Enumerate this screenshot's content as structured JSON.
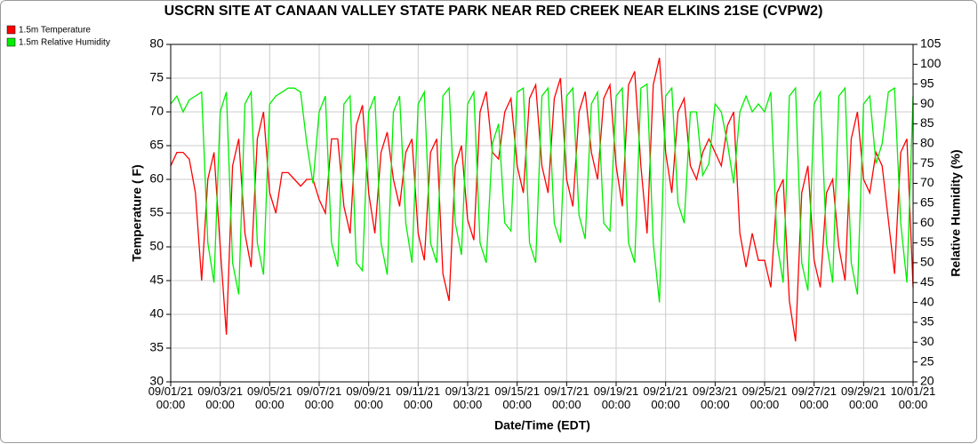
{
  "chart_data": {
    "type": "line",
    "title": "USCRN SITE AT CANAAN VALLEY STATE PARK NEAR RED CREEK NEAR ELKINS 21SE (CVPW2)",
    "xlabel": "Date/Time (EDT)",
    "ylabel": "Temperature ( F)",
    "y2label": "Relative Humidity (%)",
    "x": [
      "09/01/21 00:00",
      "09/01/21 06:00",
      "09/01/21 12:00",
      "09/01/21 18:00",
      "09/02/21 00:00",
      "09/02/21 06:00",
      "09/02/21 12:00",
      "09/02/21 18:00",
      "09/03/21 00:00",
      "09/03/21 06:00",
      "09/03/21 12:00",
      "09/03/21 18:00",
      "09/04/21 00:00",
      "09/04/21 06:00",
      "09/04/21 12:00",
      "09/04/21 18:00",
      "09/05/21 00:00",
      "09/05/21 06:00",
      "09/05/21 12:00",
      "09/05/21 18:00",
      "09/06/21 00:00",
      "09/06/21 06:00",
      "09/06/21 12:00",
      "09/06/21 18:00",
      "09/07/21 00:00",
      "09/07/21 06:00",
      "09/07/21 12:00",
      "09/07/21 18:00",
      "09/08/21 00:00",
      "09/08/21 06:00",
      "09/08/21 12:00",
      "09/08/21 18:00",
      "09/09/21 00:00",
      "09/09/21 06:00",
      "09/09/21 12:00",
      "09/09/21 18:00",
      "09/10/21 00:00",
      "09/10/21 06:00",
      "09/10/21 12:00",
      "09/10/21 18:00",
      "09/11/21 00:00",
      "09/11/21 06:00",
      "09/11/21 12:00",
      "09/11/21 18:00",
      "09/12/21 00:00",
      "09/12/21 06:00",
      "09/12/21 12:00",
      "09/12/21 18:00",
      "09/13/21 00:00",
      "09/13/21 06:00",
      "09/13/21 12:00",
      "09/13/21 18:00",
      "09/14/21 00:00",
      "09/14/21 06:00",
      "09/14/21 12:00",
      "09/14/21 18:00",
      "09/15/21 00:00",
      "09/15/21 06:00",
      "09/15/21 12:00",
      "09/15/21 18:00",
      "09/16/21 00:00",
      "09/16/21 06:00",
      "09/16/21 12:00",
      "09/16/21 18:00",
      "09/17/21 00:00",
      "09/17/21 06:00",
      "09/17/21 12:00",
      "09/17/21 18:00",
      "09/18/21 00:00",
      "09/18/21 06:00",
      "09/18/21 12:00",
      "09/18/21 18:00",
      "09/19/21 00:00",
      "09/19/21 06:00",
      "09/19/21 12:00",
      "09/19/21 18:00",
      "09/20/21 00:00",
      "09/20/21 06:00",
      "09/20/21 12:00",
      "09/20/21 18:00",
      "09/21/21 00:00",
      "09/21/21 06:00",
      "09/21/21 12:00",
      "09/21/21 18:00",
      "09/22/21 00:00",
      "09/22/21 06:00",
      "09/22/21 12:00",
      "09/22/21 18:00",
      "09/23/21 00:00",
      "09/23/21 06:00",
      "09/23/21 12:00",
      "09/23/21 18:00",
      "09/24/21 00:00",
      "09/24/21 06:00",
      "09/24/21 12:00",
      "09/24/21 18:00",
      "09/25/21 00:00",
      "09/25/21 06:00",
      "09/25/21 12:00",
      "09/25/21 18:00",
      "09/26/21 00:00",
      "09/26/21 06:00",
      "09/26/21 12:00",
      "09/26/21 18:00",
      "09/27/21 00:00",
      "09/27/21 06:00",
      "09/27/21 12:00",
      "09/27/21 18:00",
      "09/28/21 00:00",
      "09/28/21 06:00",
      "09/28/21 12:00",
      "09/28/21 18:00",
      "09/29/21 00:00",
      "09/29/21 06:00",
      "09/29/21 12:00",
      "09/29/21 18:00",
      "09/30/21 00:00",
      "09/30/21 06:00",
      "09/30/21 12:00",
      "09/30/21 18:00",
      "10/01/21 00:00"
    ],
    "series": [
      {
        "name": "1.5m Temperature",
        "color": "#ff0000",
        "values": [
          62,
          64,
          64,
          63,
          58,
          45,
          60,
          64,
          50,
          37,
          62,
          66,
          52,
          47,
          66,
          70,
          58,
          55,
          61,
          61,
          60,
          59,
          60,
          60,
          57,
          55,
          66,
          66,
          56,
          52,
          68,
          71,
          58,
          52,
          64,
          67,
          60,
          56,
          64,
          66,
          52,
          48,
          64,
          66,
          46,
          42,
          62,
          65,
          54,
          51,
          70,
          73,
          64,
          63,
          70,
          72,
          62,
          58,
          72,
          74,
          62,
          58,
          72,
          75,
          60,
          56,
          70,
          73,
          64,
          60,
          72,
          74,
          62,
          56,
          74,
          76,
          62,
          52,
          74,
          78,
          64,
          58,
          70,
          72,
          62,
          60,
          64,
          66,
          64,
          62,
          68,
          70,
          52,
          47,
          52,
          48,
          48,
          44,
          58,
          60,
          42,
          36,
          58,
          62,
          48,
          44,
          58,
          60,
          50,
          45,
          66,
          70,
          60,
          58,
          64,
          62,
          54,
          46,
          64,
          66,
          44
        ]
      },
      {
        "name": "1.5m Relative Humidity",
        "color": "#00ee00",
        "axis": "y2",
        "values": [
          90,
          92,
          88,
          91,
          92,
          93,
          55,
          45,
          88,
          93,
          50,
          42,
          90,
          93,
          55,
          47,
          90,
          92,
          93,
          94,
          94,
          93,
          80,
          70,
          88,
          92,
          55,
          49,
          90,
          92,
          50,
          48,
          88,
          92,
          55,
          47,
          88,
          92,
          60,
          50,
          90,
          93,
          55,
          50,
          92,
          94,
          60,
          52,
          90,
          93,
          55,
          50,
          80,
          85,
          60,
          58,
          93,
          94,
          55,
          50,
          92,
          94,
          60,
          55,
          92,
          94,
          62,
          56,
          90,
          93,
          60,
          58,
          92,
          94,
          55,
          50,
          94,
          95,
          55,
          40,
          92,
          94,
          65,
          60,
          88,
          88,
          72,
          75,
          90,
          88,
          80,
          70,
          88,
          92,
          88,
          90,
          88,
          93,
          55,
          45,
          92,
          94,
          50,
          43,
          90,
          93,
          55,
          45,
          92,
          94,
          50,
          42,
          90,
          92,
          75,
          80,
          93,
          94,
          60,
          45,
          92
        ]
      }
    ],
    "xlim": [
      "09/01/21 00:00",
      "10/01/21 00:00"
    ],
    "xticks": [
      {
        "value": "09/01/21 00:00",
        "label": "09/01/21\n00:00"
      },
      {
        "value": "09/03/21 00:00",
        "label": "09/03/21\n00:00"
      },
      {
        "value": "09/05/21 00:00",
        "label": "09/05/21\n00:00"
      },
      {
        "value": "09/07/21 00:00",
        "label": "09/07/21\n00:00"
      },
      {
        "value": "09/09/21 00:00",
        "label": "09/09/21\n00:00"
      },
      {
        "value": "09/11/21 00:00",
        "label": "09/11/21\n00:00"
      },
      {
        "value": "09/13/21 00:00",
        "label": "09/13/21\n00:00"
      },
      {
        "value": "09/15/21 00:00",
        "label": "09/15/21\n00:00"
      },
      {
        "value": "09/17/21 00:00",
        "label": "09/17/21\n00:00"
      },
      {
        "value": "09/19/21 00:00",
        "label": "09/19/21\n00:00"
      },
      {
        "value": "09/21/21 00:00",
        "label": "09/21/21\n00:00"
      },
      {
        "value": "09/23/21 00:00",
        "label": "09/23/21\n00:00"
      },
      {
        "value": "09/25/21 00:00",
        "label": "09/25/21\n00:00"
      },
      {
        "value": "09/27/21 00:00",
        "label": "09/27/21\n00:00"
      },
      {
        "value": "09/29/21 00:00",
        "label": "09/29/21\n00:00"
      },
      {
        "value": "10/01/21 00:00",
        "label": "10/01/21\n00:00"
      }
    ],
    "ylim": [
      30,
      80
    ],
    "yticks": [
      30,
      35,
      40,
      45,
      50,
      55,
      60,
      65,
      70,
      75,
      80
    ],
    "y2lim": [
      20,
      105
    ],
    "y2ticks": [
      20,
      25,
      30,
      35,
      40,
      45,
      50,
      55,
      60,
      65,
      70,
      75,
      80,
      85,
      90,
      95,
      100,
      105
    ],
    "grid": true,
    "legend": "top-left"
  }
}
